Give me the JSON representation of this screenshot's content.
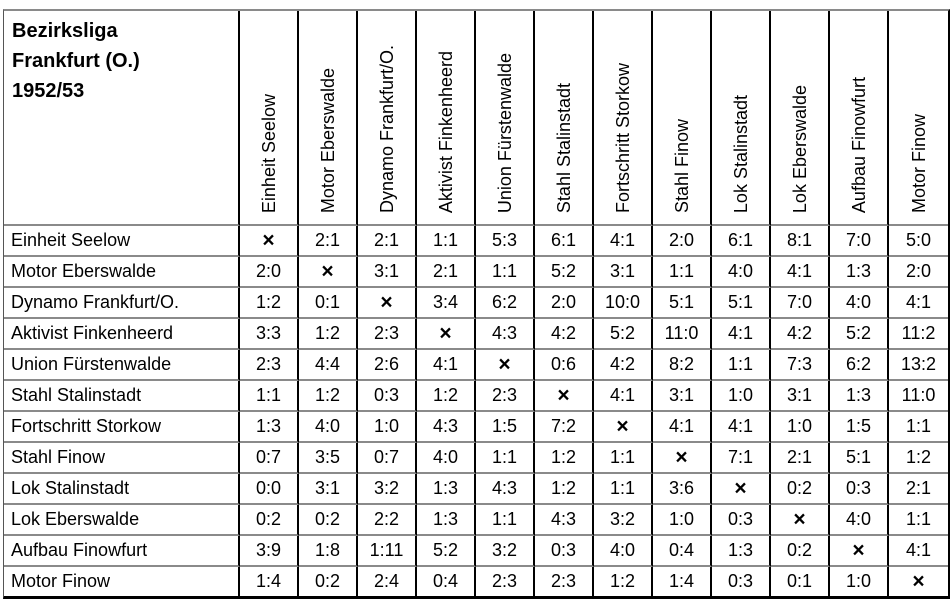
{
  "table": {
    "title_lines": [
      "Bezirksliga",
      "Frankfurt (O.)",
      "1952/53"
    ],
    "diagonal_symbol": "×",
    "teams": [
      "Einheit Seelow",
      "Motor Eberswalde",
      "Dynamo Frankfurt/O.",
      "Aktivist Finkenheerd",
      "Union Fürstenwalde",
      "Stahl Stalinstadt",
      "Fortschritt Storkow",
      "Stahl Finow",
      "Lok Stalinstadt",
      "Lok Eberswalde",
      "Aufbau Finowfurt",
      "Motor Finow"
    ],
    "results": [
      [
        null,
        "2:1",
        "2:1",
        "1:1",
        "5:3",
        "6:1",
        "4:1",
        "2:0",
        "6:1",
        "8:1",
        "7:0",
        "5:0"
      ],
      [
        "2:0",
        null,
        "3:1",
        "2:1",
        "1:1",
        "5:2",
        "3:1",
        "1:1",
        "4:0",
        "4:1",
        "1:3",
        "2:0"
      ],
      [
        "1:2",
        "0:1",
        null,
        "3:4",
        "6:2",
        "2:0",
        "10:0",
        "5:1",
        "5:1",
        "7:0",
        "4:0",
        "4:1"
      ],
      [
        "3:3",
        "1:2",
        "2:3",
        null,
        "4:3",
        "4:2",
        "5:2",
        "11:0",
        "4:1",
        "4:2",
        "5:2",
        "11:2"
      ],
      [
        "2:3",
        "4:4",
        "2:6",
        "4:1",
        null,
        "0:6",
        "4:2",
        "8:2",
        "1:1",
        "7:3",
        "6:2",
        "13:2"
      ],
      [
        "1:1",
        "1:2",
        "0:3",
        "1:2",
        "2:3",
        null,
        "4:1",
        "3:1",
        "1:0",
        "3:1",
        "1:3",
        "11:0"
      ],
      [
        "1:3",
        "4:0",
        "1:0",
        "4:3",
        "1:5",
        "7:2",
        null,
        "4:1",
        "4:1",
        "1:0",
        "1:5",
        "1:1"
      ],
      [
        "0:7",
        "3:5",
        "0:7",
        "4:0",
        "1:1",
        "1:2",
        "1:1",
        null,
        "7:1",
        "2:1",
        "5:1",
        "1:2"
      ],
      [
        "0:0",
        "3:1",
        "3:2",
        "1:3",
        "4:3",
        "1:2",
        "1:1",
        "3:6",
        null,
        "0:2",
        "0:3",
        "2:1"
      ],
      [
        "0:2",
        "0:2",
        "2:2",
        "1:3",
        "1:1",
        "4:3",
        "3:2",
        "1:0",
        "0:3",
        null,
        "4:0",
        "1:1"
      ],
      [
        "3:9",
        "1:8",
        "1:11",
        "5:2",
        "3:2",
        "0:3",
        "4:0",
        "0:4",
        "1:3",
        "0:2",
        null,
        "4:1"
      ],
      [
        "1:4",
        "0:2",
        "2:4",
        "0:4",
        "2:3",
        "2:3",
        "1:2",
        "1:4",
        "0:3",
        "0:1",
        "1:0",
        null
      ]
    ]
  }
}
